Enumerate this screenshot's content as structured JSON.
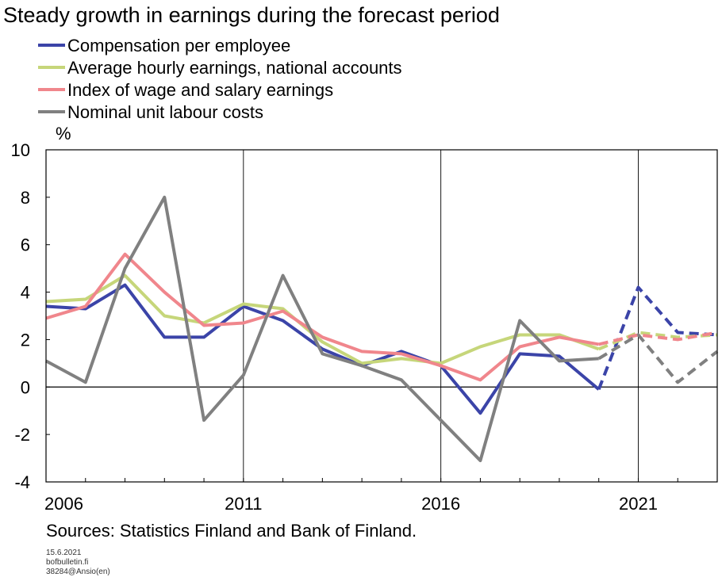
{
  "title": "Steady growth in earnings during the forecast period",
  "unit": "%",
  "source": "Sources: Statistics Finland and Bank of Finland.",
  "footer": {
    "date": "15.6.2021",
    "site": "bofbulletin.fi",
    "code": "38284@Ansio(en)"
  },
  "chart_data": {
    "type": "line",
    "x": [
      2006,
      2007,
      2008,
      2009,
      2010,
      2011,
      2012,
      2013,
      2014,
      2015,
      2016,
      2017,
      2018,
      2019,
      2020,
      2021,
      2022,
      2023
    ],
    "x_tick_labels": [
      "2006",
      "2011",
      "2016",
      "2021"
    ],
    "y_ticks": [
      10,
      8,
      6,
      4,
      2,
      0,
      -2,
      -4
    ],
    "ylabel": "%",
    "ylim": [
      -4,
      10
    ],
    "xlim": [
      2006,
      2023
    ],
    "grid": "vertical lines at 2011, 2016, 2021; horizontal line at 0",
    "legend_placement": "top-left, above plot",
    "forecast_from": 2020,
    "forecast_style": "dashed",
    "series": [
      {
        "name": "Compensation per employee",
        "color": "#3b44a8",
        "values": [
          3.4,
          3.3,
          4.3,
          2.1,
          2.1,
          3.4,
          2.8,
          1.6,
          0.9,
          1.5,
          0.9,
          -1.1,
          1.4,
          1.3,
          -0.1,
          4.2,
          2.3,
          2.2
        ]
      },
      {
        "name": "Average hourly earnings, national accounts",
        "color": "#c6d67a",
        "values": [
          3.6,
          3.7,
          4.7,
          3.0,
          2.7,
          3.5,
          3.3,
          1.9,
          1.0,
          1.2,
          1.0,
          1.7,
          2.2,
          2.2,
          1.6,
          2.3,
          2.1,
          2.2
        ]
      },
      {
        "name": "Index of wage and salary earnings",
        "color": "#f0868c",
        "values": [
          2.9,
          3.4,
          5.6,
          4.0,
          2.6,
          2.7,
          3.2,
          2.1,
          1.5,
          1.4,
          0.9,
          0.3,
          1.7,
          2.1,
          1.8,
          2.2,
          2.0,
          2.3
        ]
      },
      {
        "name": "Nominal unit labour costs",
        "color": "#808080",
        "values": [
          1.1,
          0.2,
          5.0,
          8.0,
          -1.4,
          0.5,
          4.7,
          1.4,
          0.9,
          0.3,
          -1.4,
          -3.1,
          2.8,
          1.1,
          1.2,
          2.2,
          0.2,
          1.5
        ]
      }
    ]
  }
}
